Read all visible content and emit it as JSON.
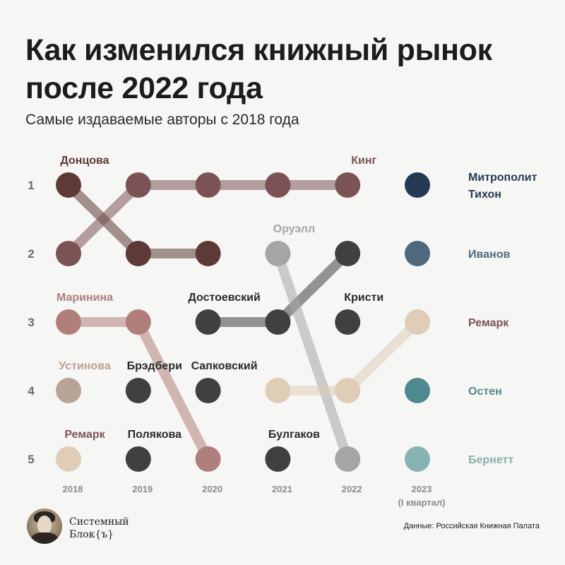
{
  "title_line1": "Как изменился книжный рынок",
  "title_line2": "после 2022 года",
  "subtitle": "Самые издаваемые авторы с 2018 года",
  "brand": {
    "line1": "Системный",
    "line2": "Блок{ъ}"
  },
  "source": "Данные: Российская Книжная Палата",
  "chart_data": {
    "type": "bump",
    "x": [
      "2018",
      "2019",
      "2020",
      "2021",
      "2022",
      "2023"
    ],
    "x_sublabels": [
      "",
      "",
      "",
      "",
      "",
      "(I квартал)"
    ],
    "ranks": [
      "1",
      "2",
      "3",
      "4",
      "5"
    ],
    "points": [
      {
        "year": "2018",
        "rank": 1,
        "author": "Донцова",
        "label": "Донцова",
        "color": "#5e3a36",
        "label_color": "#5e3a36"
      },
      {
        "year": "2018",
        "rank": 2,
        "author": "Кинг",
        "label": "",
        "color": "#7c5355"
      },
      {
        "year": "2018",
        "rank": 3,
        "author": "Маринина",
        "label": "Маринина",
        "color": "#b07f7b",
        "label_color": "#b07f7b"
      },
      {
        "year": "2018",
        "rank": 4,
        "author": "Устинова",
        "label": "Устинова",
        "color": "#b7a497",
        "label_color": "#b7a497"
      },
      {
        "year": "2018",
        "rank": 5,
        "author": "Ремарк",
        "label": "Ремарк",
        "color": "#dfcdb8",
        "label_color": "#7d5456"
      },
      {
        "year": "2019",
        "rank": 1,
        "author": "Кинг",
        "label": "",
        "color": "#7c5355"
      },
      {
        "year": "2019",
        "rank": 2,
        "author": "Донцова",
        "label": "",
        "color": "#5e3a36"
      },
      {
        "year": "2019",
        "rank": 3,
        "author": "Маринина",
        "label": "",
        "color": "#b07f7b"
      },
      {
        "year": "2019",
        "rank": 4,
        "author": "Брэдбери",
        "label": "Брэдбери",
        "color": "#404040",
        "label_color": "#2a2a2a"
      },
      {
        "year": "2019",
        "rank": 5,
        "author": "Полякова",
        "label": "Полякова",
        "color": "#404040",
        "label_color": "#2a2a2a"
      },
      {
        "year": "2020",
        "rank": 1,
        "author": "Кинг",
        "label": "",
        "color": "#7c5355"
      },
      {
        "year": "2020",
        "rank": 2,
        "author": "Донцова",
        "label": "",
        "color": "#5e3a36"
      },
      {
        "year": "2020",
        "rank": 3,
        "author": "Достоевский",
        "label": "Достоевский",
        "color": "#404040",
        "label_color": "#2a2a2a"
      },
      {
        "year": "2020",
        "rank": 4,
        "author": "Сапковский",
        "label": "Сапковский",
        "color": "#404040",
        "label_color": "#2a2a2a"
      },
      {
        "year": "2020",
        "rank": 5,
        "author": "Маринина",
        "label": "",
        "color": "#b07f7b"
      },
      {
        "year": "2021",
        "rank": 1,
        "author": "Кинг",
        "label": "",
        "color": "#7c5355"
      },
      {
        "year": "2021",
        "rank": 2,
        "author": "Оруэлл",
        "label": "Оруэлл",
        "color": "#a5a5a5",
        "label_color": "#a5a5a5"
      },
      {
        "year": "2021",
        "rank": 3,
        "author": "Достоевский",
        "label": "",
        "color": "#404040"
      },
      {
        "year": "2021",
        "rank": 4,
        "author": "Ремарк",
        "label": "",
        "color": "#dfcdb8"
      },
      {
        "year": "2021",
        "rank": 5,
        "author": "Булгаков",
        "label": "Булгаков",
        "color": "#404040",
        "label_color": "#2a2a2a"
      },
      {
        "year": "2022",
        "rank": 1,
        "author": "Кинг",
        "label": "Кинг",
        "color": "#7c5355",
        "label_color": "#7c5355"
      },
      {
        "year": "2022",
        "rank": 2,
        "author": "Достоевский",
        "label": "",
        "color": "#404040"
      },
      {
        "year": "2022",
        "rank": 3,
        "author": "Кристи",
        "label": "Кристи",
        "color": "#404040",
        "label_color": "#2a2a2a"
      },
      {
        "year": "2022",
        "rank": 4,
        "author": "Ремарк",
        "label": "",
        "color": "#dfcdb8"
      },
      {
        "year": "2022",
        "rank": 5,
        "author": "Оруэлл",
        "label": "",
        "color": "#a5a5a5"
      },
      {
        "year": "2023",
        "rank": 1,
        "author": "Митрополит Тихон",
        "label": "Митрополит Тихон",
        "color": "#253a55",
        "label_color": "#253a55"
      },
      {
        "year": "2023",
        "rank": 2,
        "author": "Иванов",
        "label": "Иванов",
        "color": "#4e687d",
        "label_color": "#4e687d"
      },
      {
        "year": "2023",
        "rank": 3,
        "author": "Ремарк",
        "label": "Ремарк",
        "color": "#dfcdb8",
        "label_color": "#7d5456"
      },
      {
        "year": "2023",
        "rank": 4,
        "author": "Остен",
        "label": "Остен",
        "color": "#4f8990",
        "label_color": "#4f8990"
      },
      {
        "year": "2023",
        "rank": 5,
        "author": "Бернетт",
        "label": "Бернетт",
        "color": "#86b3b1",
        "label_color": "#86b3b1"
      }
    ],
    "series": [
      {
        "name": "Донцова",
        "color": "#5e3a36",
        "path": [
          [
            "2018",
            1
          ],
          [
            "2019",
            2
          ],
          [
            "2020",
            2
          ]
        ]
      },
      {
        "name": "Кинг",
        "color": "#7c5355",
        "path": [
          [
            "2018",
            2
          ],
          [
            "2019",
            1
          ],
          [
            "2022",
            1
          ]
        ]
      },
      {
        "name": "Маринина",
        "color": "#b07f7b",
        "path": [
          [
            "2018",
            3
          ],
          [
            "2019",
            3
          ],
          [
            "2020",
            5
          ]
        ]
      },
      {
        "name": "Достоевский",
        "color": "#404040",
        "path": [
          [
            "2020",
            3
          ],
          [
            "2021",
            3
          ],
          [
            "2022",
            2
          ]
        ]
      },
      {
        "name": "Оруэлл",
        "color": "#a5a5a5",
        "path": [
          [
            "2021",
            2
          ],
          [
            "2022",
            5
          ]
        ]
      },
      {
        "name": "Ремарк",
        "color": "#dfcdb8",
        "path": [
          [
            "2021",
            4
          ],
          [
            "2022",
            4
          ],
          [
            "2023",
            3
          ]
        ]
      }
    ]
  }
}
